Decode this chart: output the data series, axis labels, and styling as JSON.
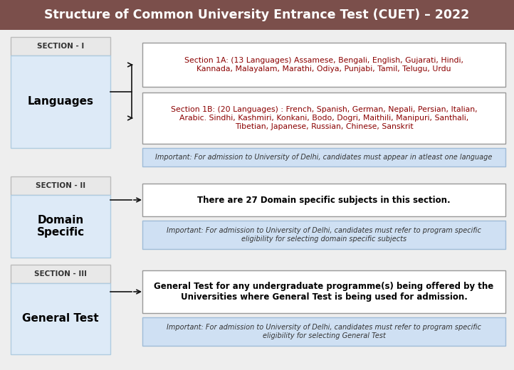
{
  "title": "Structure of Common University Entrance Test (CUET) – 2022",
  "title_bg": "#7B4F4B",
  "title_color": "#ffffff",
  "bg_color": "#eeeeee",
  "sec1_label": "SECTION - I",
  "sec1_main": "Languages",
  "sec1_box1_text": "Section 1A: (13 Languages) Assamese, Bengali, English, Gujarati, Hindi,\nKannada, Malayalam, Marathi, Odiya, Punjabi, Tamil, Telugu, Urdu",
  "sec1_box1_color": "#8B0000",
  "sec1_box2_text": "Section 1B: (20 Languages) : French, Spanish, German, Nepali, Persian, Italian,\nArabic. Sindhi, Kashmiri, Konkani, Bodo, Dogri, Maithili, Manipuri, Santhali,\nTibetian, Japanese, Russian, Chinese, Sanskrit",
  "sec1_box2_color": "#8B0000",
  "sec1_imp": "Important: For admission to University of Delhi, candidates must appear in atleast one language",
  "sec2_label": "SECTION - II",
  "sec2_main": "Domain\nSpecific",
  "sec2_box1_text": "There are 27 Domain specific subjects in this section.",
  "sec2_imp": "Important: For admission to University of Delhi, candidates must refer to program specific\neligibility for selecting domain specific subjects",
  "sec3_label": "SECTION - III",
  "sec3_main": "General Test",
  "sec3_box1_text": "General Test for any undergraduate programme(s) being offered by the\nUniversities where General Test is being used for admission.",
  "sec3_imp": "Important: For admission to University of Delhi, candidates must refer to program specific\neligibility for selecting General Test",
  "box_bg": "#ffffff",
  "box_border": "#999999",
  "imp_bg": "#cfe0f3",
  "imp_border": "#a0bcd8",
  "left_bg": "#ddeaf7",
  "left_border": "#b0cce0",
  "sec_label_bg": "#e8e8e8",
  "sec_label_border": "#bbbbbb",
  "arrow_color": "#111111"
}
